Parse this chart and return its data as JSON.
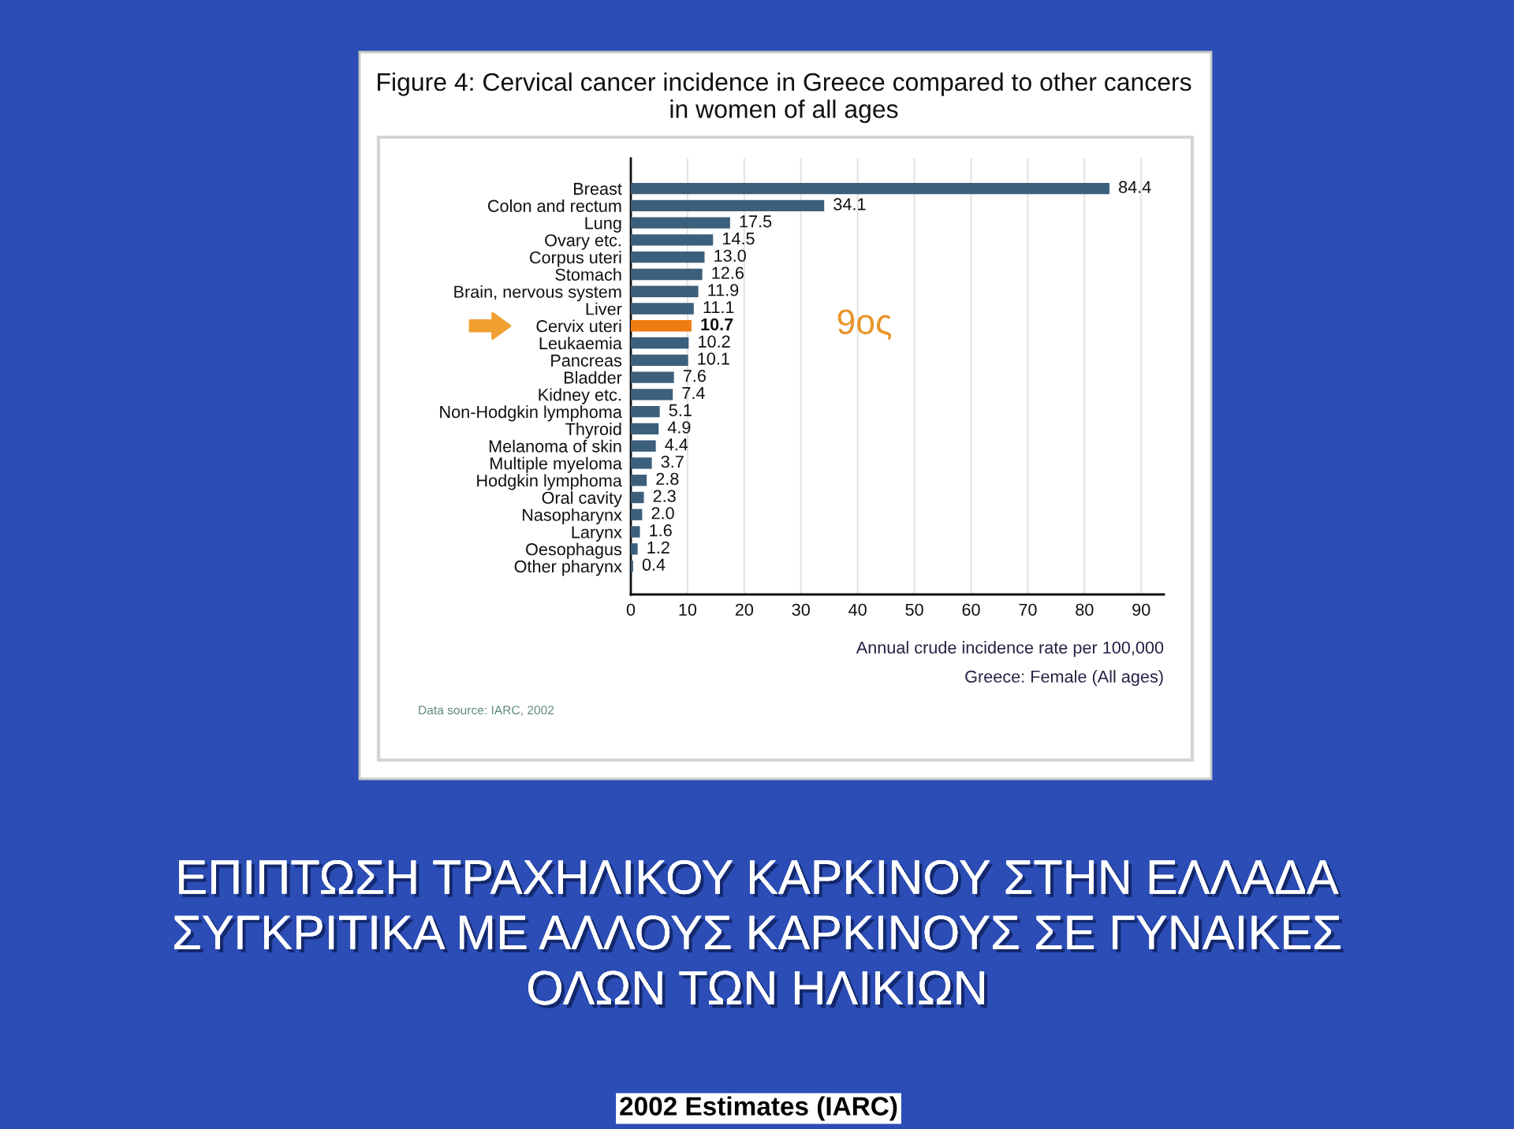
{
  "chart_data": {
    "type": "bar",
    "orientation": "horizontal",
    "title": "Figure 4: Cervical cancer incidence in Greece compared to other cancers\nin women of all ages",
    "subtitle": "ΕΠΙΠΤΩΣΗ ΤΡΑΧΗΛΙΚΟΥ ΚΑΡΚΙΝΟΥ ΣΤΗΝ ΕΛΛΑΔΑ\nΣΥΓΚΡΙΤΙΚΑ ΜΕ ΑΛΛΟΥΣ ΚΑΡΚΙΝΟΥΣ ΣΕ ΓΥΝΑΙΚΕΣ\nΟΛΩΝ ΤΩΝ ΗΛΙΚΙΩΝ",
    "xlabel": "Annual crude incidence rate per 100,000",
    "categories": [
      "Breast",
      "Colon and rectum",
      "Lung",
      "Ovary etc.",
      "Corpus uteri",
      "Stomach",
      "Brain, nervous system",
      "Liver",
      "Cervix uteri",
      "Leukaemia",
      "Pancreas",
      "Bladder",
      "Kidney etc.",
      "Non-Hodgkin lymphoma",
      "Thyroid",
      "Melanoma of skin",
      "Multiple myeloma",
      "Hodgkin lymphoma",
      "Oral cavity",
      "Nasopharynx",
      "Larynx",
      "Oesophagus",
      "Other pharynx"
    ],
    "values": [
      84.4,
      34.1,
      17.5,
      14.5,
      13.0,
      12.6,
      11.9,
      11.1,
      10.7,
      10.2,
      10.1,
      7.6,
      7.4,
      5.1,
      4.9,
      4.4,
      3.7,
      2.8,
      2.3,
      2.0,
      1.6,
      1.2,
      0.4
    ],
    "value_labels": [
      "84.4",
      "34.1",
      "17.5",
      "14.5",
      "13.0",
      "12.6",
      "11.9",
      "11.1",
      "10.7",
      "10.2",
      "10.1",
      "7.6",
      "7.4",
      "5.1",
      "4.9",
      "4.4",
      "3.7",
      "2.8",
      "2.3",
      "2.0",
      "1.6",
      "1.2",
      "0.4"
    ],
    "colors": [
      "#3c5f7c",
      "#3c5f7c",
      "#3c5f7c",
      "#3c5f7c",
      "#3c5f7c",
      "#3c5f7c",
      "#3c5f7c",
      "#3c5f7c",
      "#f07d14",
      "#3c5f7c",
      "#3c5f7c",
      "#3c5f7c",
      "#3c5f7c",
      "#3c5f7c",
      "#3c5f7c",
      "#3c5f7c",
      "#3c5f7c",
      "#3c5f7c",
      "#3c5f7c",
      "#3c5f7c",
      "#3c5f7c",
      "#3c5f7c",
      "#3c5f7c"
    ],
    "xlim": [
      0,
      94
    ],
    "xticks": [
      0,
      10,
      20,
      30,
      40,
      50,
      60,
      70,
      80,
      90
    ],
    "grid": "x",
    "annotations": [
      "9ος",
      "Greece: Female (All ages)",
      "Data source: IARC, 2002",
      "2002 Estimates (IARC)"
    ]
  }
}
